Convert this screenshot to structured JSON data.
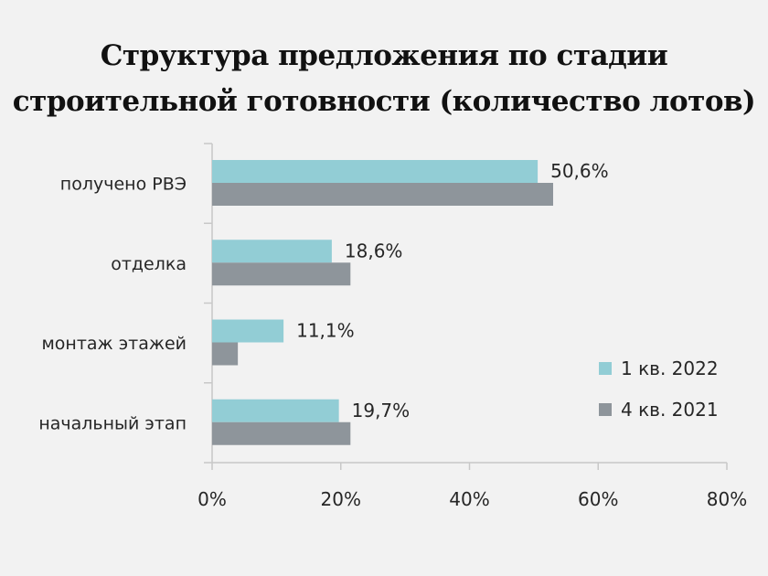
{
  "page": {
    "title_line1": "Структура предложения по стадии",
    "title_line2": "строительной готовности (количество лотов)"
  },
  "chart_data": {
    "type": "bar",
    "orientation": "horizontal",
    "categories": [
      "получено РВЭ",
      "отделка",
      "монтаж этажей",
      "начальный этап"
    ],
    "series": [
      {
        "name": "1 кв. 2022",
        "values": [
          50.6,
          18.6,
          11.1,
          19.7
        ],
        "color": "#92cdd5"
      },
      {
        "name": "4 кв. 2021",
        "values": [
          53,
          21.5,
          4,
          21.5
        ],
        "color": "#8e959b"
      }
    ],
    "data_labels": [
      "50,6%",
      "18,6%",
      "11,1%",
      "19,7%"
    ],
    "x_ticks": [
      "0%",
      "20%",
      "40%",
      "60%",
      "80%"
    ],
    "xlim": [
      0,
      80
    ],
    "grid": false,
    "legend_position": "right"
  }
}
